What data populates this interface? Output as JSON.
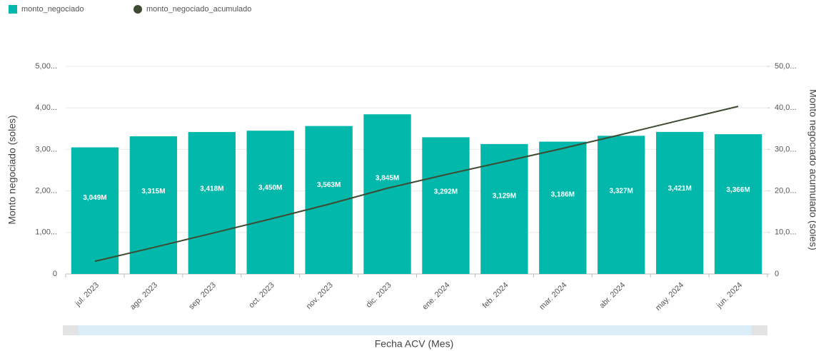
{
  "chart_data": {
    "type": "bar-line",
    "x_label": "Fecha ACV (Mes)",
    "y_label": "Monto negociado (soles)",
    "y2_label": "Monto negociado acumulado (soles)",
    "categories": [
      "jul. 2023",
      "ago. 2023",
      "sep. 2023",
      "oct. 2023",
      "nov. 2023",
      "dic. 2023",
      "ene. 2024",
      "feb. 2024",
      "mar. 2024",
      "abr. 2024",
      "may. 2024",
      "jun. 2024"
    ],
    "series": [
      {
        "name": "monto_negociado",
        "color": "#01b8aa",
        "type": "bar",
        "values": [
          3049000,
          3315000,
          3418000,
          3450000,
          3563000,
          3845000,
          3292000,
          3129000,
          3186000,
          3327000,
          3421000,
          3366000
        ],
        "value_labels": [
          "3,049M",
          "3,315M",
          "3,418M",
          "3,450M",
          "3,563M",
          "3,845M",
          "3,292M",
          "3,129M",
          "3,186M",
          "3,327M",
          "3,421M",
          "3,366M"
        ]
      },
      {
        "name": "monto_negociado_acumulado",
        "color": "#3e4b33",
        "type": "line",
        "axis": "y2",
        "values": [
          3049000,
          6364000,
          9782000,
          13232000,
          16795000,
          20640000,
          23932000,
          27061000,
          30247000,
          33574000,
          36995000,
          40361000
        ]
      }
    ],
    "ylim": [
      0,
      5000000
    ],
    "yticks": [
      0,
      {
        "value": 1000000,
        "label": "1,00..."
      },
      {
        "value": 2000000,
        "label": "2,00..."
      },
      {
        "value": 3000000,
        "label": "3,00..."
      },
      {
        "value": 4000000,
        "label": "4,00..."
      },
      {
        "value": 5000000,
        "label": "5,00..."
      }
    ],
    "y2lim": [
      0,
      50000000
    ],
    "y2ticks": [
      0,
      {
        "value": 10000000,
        "label": "10,0..."
      },
      {
        "value": 20000000,
        "label": "20,0..."
      },
      {
        "value": 30000000,
        "label": "30,0..."
      },
      {
        "value": 40000000,
        "label": "40,0..."
      },
      {
        "value": 50000000,
        "label": "50,0..."
      }
    ],
    "grid": true
  }
}
